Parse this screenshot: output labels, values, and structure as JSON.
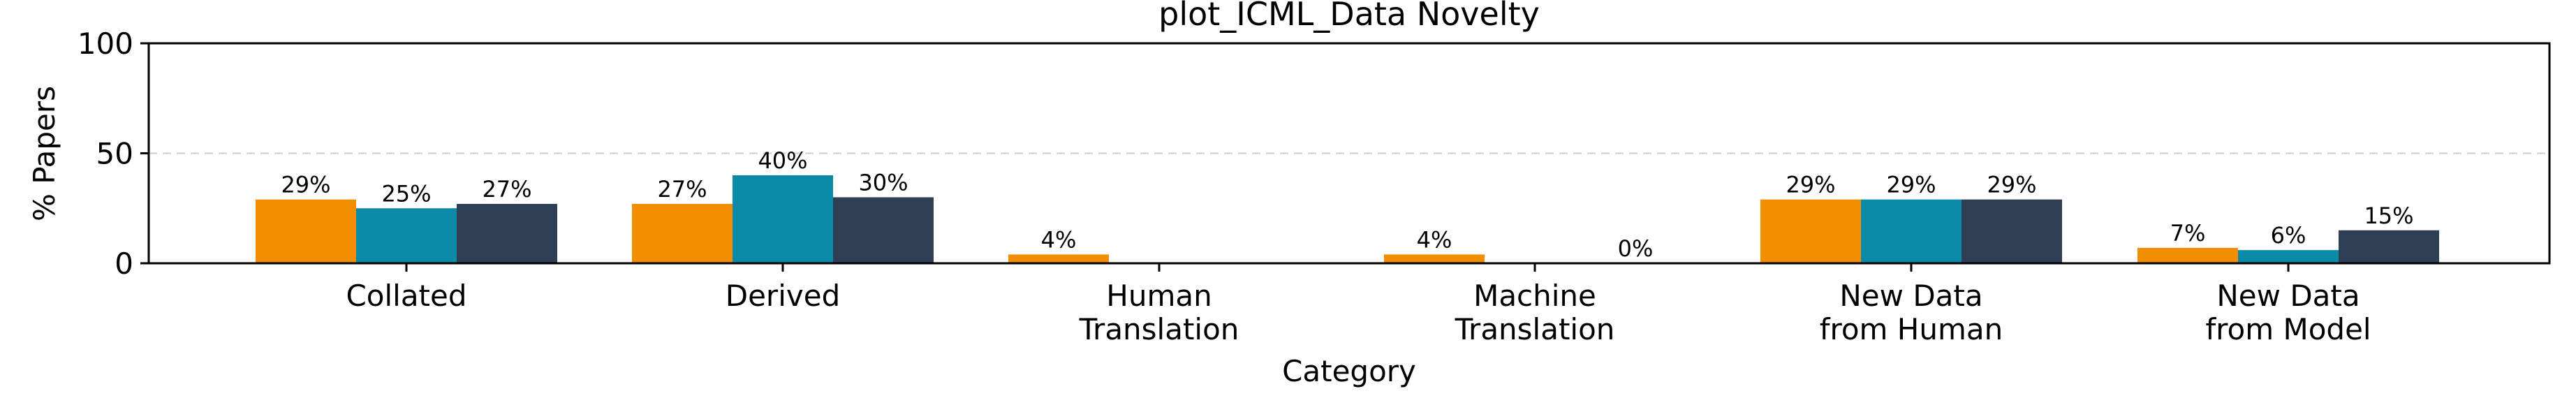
{
  "chart_data": {
    "type": "bar",
    "title": "plot_ICML_Data Novelty",
    "xlabel": "Category",
    "ylabel": "% Papers",
    "ylim": [
      0,
      100
    ],
    "yticks": [
      0,
      50,
      100
    ],
    "grid": "horizontal-dashed-at-50",
    "legend": "none",
    "categories": [
      [
        "Collated"
      ],
      [
        "Derived"
      ],
      [
        "Human",
        "Translation"
      ],
      [
        "Machine",
        "Translation"
      ],
      [
        "New Data",
        "from Human"
      ],
      [
        "New Data",
        "from Model"
      ]
    ],
    "series": [
      {
        "color": "#f28e00",
        "values": [
          29,
          27,
          4,
          4,
          29,
          7
        ]
      },
      {
        "color": "#0b8aa8",
        "values": [
          25,
          40,
          null,
          null,
          29,
          6
        ]
      },
      {
        "color": "#2d3e55",
        "values": [
          27,
          30,
          null,
          0,
          29,
          15
        ]
      }
    ],
    "value_suffix": "%"
  }
}
